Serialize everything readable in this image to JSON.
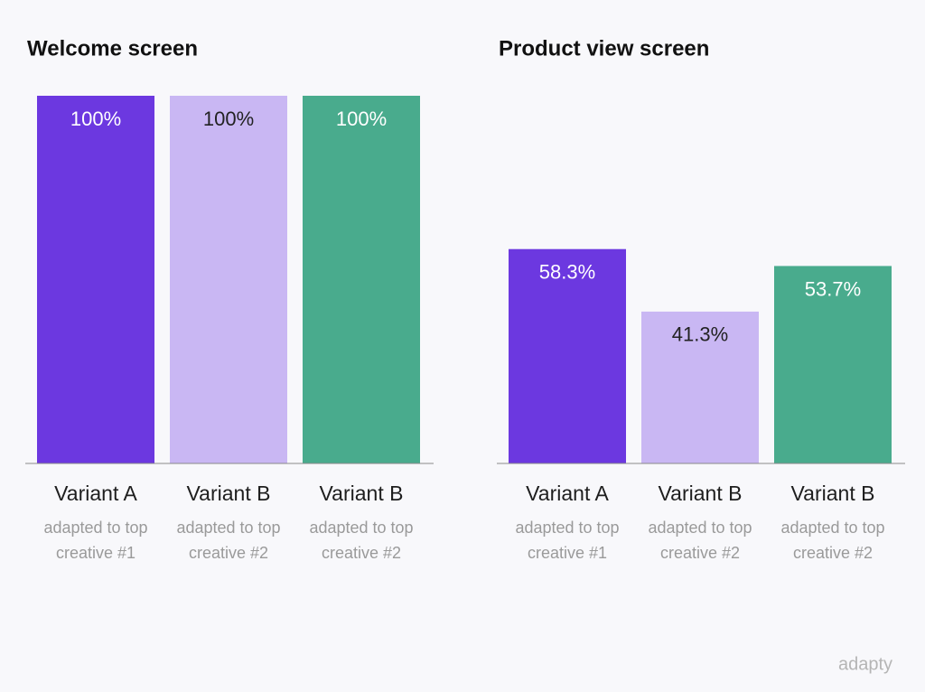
{
  "chart_data": [
    {
      "type": "bar",
      "title": "Welcome screen",
      "categories": [
        "Variant A",
        "Variant B",
        "Variant B"
      ],
      "descriptions": [
        "adapted to top creative #1",
        "adapted to top creative #2",
        "adapted to top creative #2"
      ],
      "values": [
        100,
        100,
        100
      ],
      "value_labels": [
        "100%",
        "100%",
        "100%"
      ],
      "colors": [
        "#6c38e0",
        "#c9b7f3",
        "#49ab8d"
      ],
      "ylim": [
        0,
        100
      ]
    },
    {
      "type": "bar",
      "title": "Product view screen",
      "categories": [
        "Variant A",
        "Variant B",
        "Variant B"
      ],
      "descriptions": [
        "adapted to top creative #1",
        "adapted to top creative #2",
        "adapted to top creative #2"
      ],
      "values": [
        58.3,
        41.3,
        53.7
      ],
      "value_labels": [
        "58.3%",
        "41.3%",
        "53.7%"
      ],
      "colors": [
        "#6c38e0",
        "#c9b7f3",
        "#49ab8d"
      ],
      "ylim": [
        0,
        100
      ]
    }
  ],
  "brand": "adapty"
}
